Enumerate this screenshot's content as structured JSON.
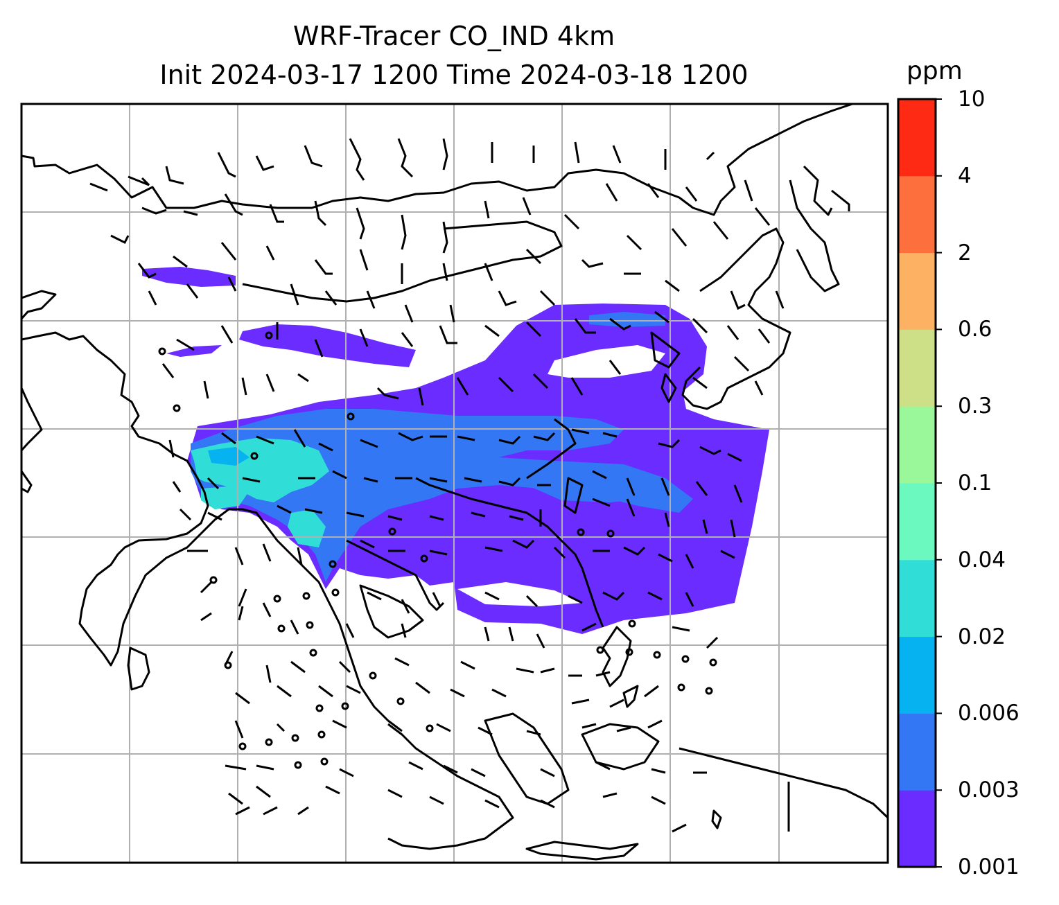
{
  "title": {
    "line1": "WRF-Tracer CO_IND 4km",
    "line2": "Init 2024-03-17 1200 Time 2024-03-18 1200"
  },
  "colorbar": {
    "units": "ppm",
    "levels": [
      "0.001",
      "0.003",
      "0.006",
      "0.02",
      "0.04",
      "0.1",
      "0.3",
      "0.6",
      "2",
      "4",
      "10"
    ],
    "colors": [
      "#6a2cff",
      "#3377f4",
      "#06b2ef",
      "#30ddd7",
      "#6cf9c0",
      "#9af79a",
      "#cde088",
      "#fdb263",
      "#fd6f3c",
      "#ff2a14"
    ]
  },
  "map": {
    "coastline_color": "#000000",
    "gridline_color": "#b0b0b0",
    "tracer_low_color": "#6a2cff",
    "tracer_mid_color": "#3377f4",
    "tracer_high_color": "#30ddd7",
    "gridlines": true,
    "wind_barbs": true
  }
}
